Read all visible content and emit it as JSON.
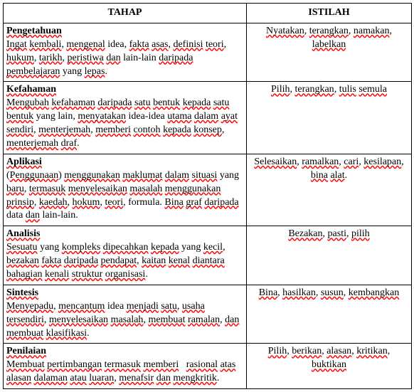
{
  "header": {
    "tahap": "TAHAP",
    "istilah": "ISTILAH"
  },
  "rows": [
    {
      "heading": "Pengetahuan",
      "desc_html": "<span class='w'>Ingat</span> <span class='w'>kembali</span>, <span class='w'>mengenal</span> idea, <span class='w'>fakta</span> <span class='w'>asas</span>, <span class='w'>definisi</span> <span class='w'>teori</span>, <span class='w'>hukum</span>, <span class='w'>tarikh</span>, <span class='w'>peristiwa</span> <span class='w'>dan</span> lain-lain <span class='w'>daripada</span> <span class='w'>pembelajaran</span> yang <span class='w'>lepas</span>.",
      "istilah_html": "<span class='w'>Nyatakan</span>, <span class='w'>terangkan</span>, <span class='w'>namakan</span>, <span class='w'>labelkan</span>"
    },
    {
      "heading": "Kefahaman",
      "desc_html": "<span class='w'>Mengubah</span> <span class='w'>kefahaman</span> <span class='w'>daripada</span> <span class='w'>satu</span> <span class='w'>bentuk</span> <span class='w'>kepada</span> <span class='w'>satu</span> <span class='w'>bentuk</span> yang lain, <span class='w'>menyatakan</span> idea-idea <span class='w'>utama</span> <span class='w'>dalam</span> <span class='w'>ayat</span> <span class='w'>sendiri</span>, <span class='w'>menterjemah</span>, <span class='w'>memberi</span> <span class='w'>contoh</span> <span class='w'>kepada</span> <span class='w'>konsep</span>, <span class='w'>menterjemah</span> <span class='w'>draf</span>.",
      "istilah_html": "<span class='w'>Pilih</span>, <span class='w'>terangkan</span>, <span class='w'>tulis</span> <span class='w'>semula</span>"
    },
    {
      "heading": "Aplikasi",
      "desc_html": "(<span class='w'>Penggunaan</span>) <span class='w'>menggunakan</span> <span class='w'>maklumat</span> <span class='w'>dalam</span> <span class='w'>situasi</span> yang <span class='w'>baru</span>, <span class='w'>termasuk</span> <span class='w'>menyelesaikan</span> <span class='w'>masalah</span> <span class='w'>menggunakan</span> <span class='w'>prinsip</span>, <span class='w'>kaedah</span>, <span class='w'>hokum</span>, <span class='w'>teori</span>, formula. <span class='w'>Bina</span> <span class='w'>graf</span> <span class='w'>daripada</span> data <span class='w'>dan</span> lain-lain.",
      "istilah_html": "<span class='w'>Selesaikan</span>, <span class='w'>ramalkan</span>, <span class='w'>cari</span>, <span class='w'>kesilapan</span>, <span class='w'>bina</span> <span class='w'>alat</span>."
    },
    {
      "heading": "Analisis",
      "desc_html": "<span class='w'>Sesuatu</span> yang <span class='w'>kompleks</span> <span class='w'>dipecahkan</span> <span class='w'>kepada</span> yang <span class='w'>kecil</span>, <span class='w'>bezakan</span> <span class='w'>fakta</span> <span class='w'>daripada</span> <span class='w'>pendapat</span>, <span class='w'>kaitan</span> <span class='w'>kenal</span> <span class='w'>diantara</span> <span class='w'>bahagian</span> <span class='w'>kenali</span> <span class='w'>struktur</span> <span class='w'>organisasi</span>.",
      "istilah_html": "<span class='w'>Bezakan</span>, <span class='w'>pasti</span>, <span class='w'>pilih</span>"
    },
    {
      "heading": "Sintesis",
      "desc_html": "<span class='w'>Menyepadu</span>, <span class='w'>mencantum</span> idea <span class='w'>menjadi</span> <span class='w'>satu</span>, <span class='w'>usaha</span> <span class='w'>tersendiri</span>, <span class='w'>menyelesaikan</span> <span class='w'>masalah</span>, <span class='w'>membuat</span> <span class='w'>ramalan</span>, <span class='w'>dan</span> <span class='w'>membuat</span> <span class='w'>klasifikasi</span>.",
      "istilah_html": "<span class='w'>Bina</span>, <span class='w'>hasilkan</span>, <span class='w'>susun</span>, <span class='w'>kembangkan</span>"
    },
    {
      "heading": "Penilaian",
      "desc_html": "<span class='w'>Membuat</span> <span class='w'>pertimbangan</span> <span class='w'>termasuk</span> <span class='w'>memberi</span>&nbsp;&nbsp; <span class='w'>rasional</span> <span class='w'>atas</span> <span class='w'>alasan</span> <span class='w'>dalaman</span> <span class='w'>atau</span> <span class='w'>luaran</span>, <span class='w'>menafsir</span> <span class='w'>dan</span> <span class='w'>mengkritik</span>.",
      "istilah_html": "<span class='w'>Pilih</span>, <span class='w'>berikan</span>, <span class='w'>alasan</span>, <span class='w'>kritikan</span>, <span class='w'>buktikan</span>"
    }
  ]
}
